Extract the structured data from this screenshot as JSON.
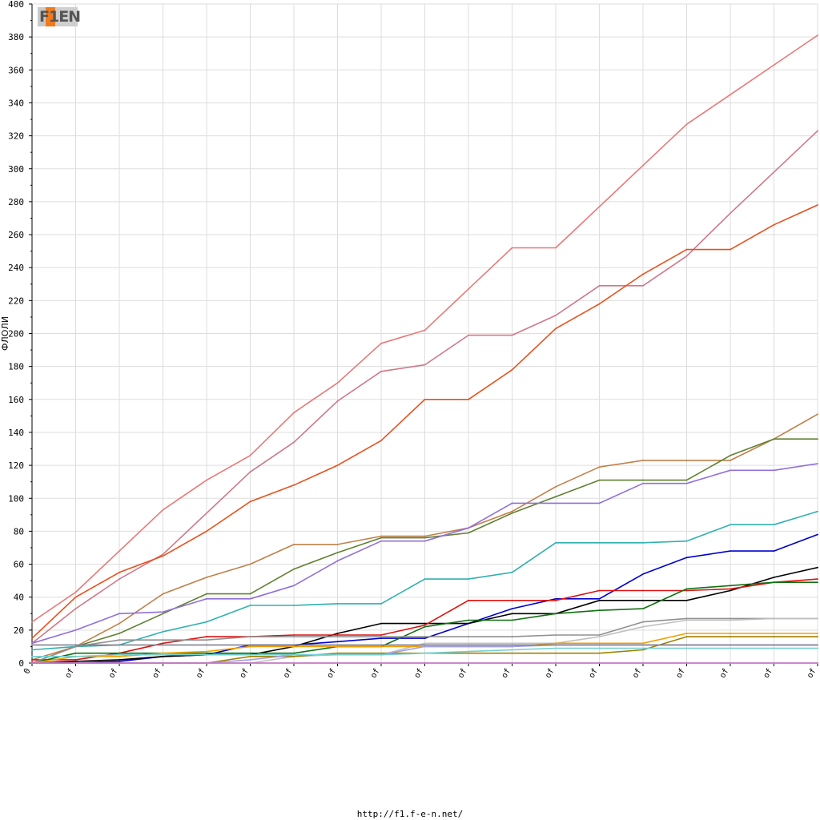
{
  "logo_text": "F1EN",
  "footer_url": "http://f1.f-e-n.net/",
  "chart_data": {
    "type": "line",
    "title": "",
    "xlabel": "",
    "ylabel": "ФЛОЛИ",
    "ylim": [
      0,
      400
    ],
    "yticks": [
      0,
      20,
      40,
      60,
      80,
      100,
      120,
      140,
      160,
      180,
      200,
      220,
      240,
      260,
      280,
      300,
      320,
      340,
      360,
      380,
      400
    ],
    "categories": [
      "0",
      "of",
      "of",
      "of",
      "of",
      "of",
      "of",
      "of",
      "of",
      "of",
      "of",
      "of",
      "of",
      "of",
      "of",
      "of",
      "of",
      "of",
      "of"
    ],
    "grid": true,
    "legend": "none",
    "series": [
      {
        "color": "#e87878",
        "values": [
          25,
          43,
          68,
          93,
          111,
          126,
          152,
          170,
          194,
          202,
          227,
          252,
          252,
          277,
          302,
          327,
          345,
          363,
          381
        ]
      },
      {
        "color": "#d07888",
        "values": [
          12,
          33,
          51,
          66,
          91,
          116,
          134,
          159,
          177,
          181,
          199,
          199,
          211,
          229,
          229,
          247,
          273,
          298,
          323
        ]
      },
      {
        "color": "#e8501c",
        "values": [
          15,
          40,
          55,
          65,
          80,
          98,
          108,
          120,
          135,
          160,
          160,
          178,
          203,
          218,
          236,
          251,
          251,
          266,
          278
        ]
      },
      {
        "color": "#c08048",
        "values": [
          2,
          10,
          24,
          42,
          52,
          60,
          72,
          72,
          77,
          77,
          82,
          92,
          107,
          119,
          123,
          123,
          123,
          136,
          151
        ]
      },
      {
        "color": "#608030",
        "values": [
          0,
          10,
          18,
          30,
          42,
          42,
          57,
          67,
          76,
          76,
          79,
          91,
          101,
          111,
          111,
          111,
          126,
          136,
          136
        ]
      },
      {
        "color": "#9070d8",
        "values": [
          12,
          20,
          30,
          31,
          39,
          39,
          47,
          62,
          74,
          74,
          82,
          97,
          97,
          97,
          109,
          109,
          117,
          117,
          121
        ]
      },
      {
        "color": "#30b0b0",
        "values": [
          8,
          10,
          11,
          19,
          25,
          35,
          35,
          36,
          36,
          51,
          51,
          55,
          73,
          73,
          73,
          74,
          84,
          84,
          92
        ]
      },
      {
        "color": "#0000d0",
        "values": [
          0,
          0,
          1,
          4,
          5,
          11,
          11,
          13,
          15,
          15,
          24,
          33,
          39,
          39,
          54,
          64,
          68,
          68,
          78
        ]
      },
      {
        "color": "#000000",
        "values": [
          0,
          1,
          2,
          4,
          5,
          5,
          10,
          18,
          24,
          24,
          24,
          30,
          30,
          38,
          38,
          38,
          44,
          52,
          58
        ]
      },
      {
        "color": "#e01010",
        "values": [
          2,
          2,
          6,
          12,
          16,
          16,
          17,
          17,
          17,
          23,
          38,
          38,
          38,
          44,
          44,
          44,
          45,
          49,
          51
        ]
      },
      {
        "color": "#107010",
        "values": [
          0,
          6,
          6,
          6,
          6,
          6,
          6,
          10,
          10,
          22,
          26,
          26,
          30,
          32,
          33,
          45,
          47,
          49,
          49
        ]
      },
      {
        "color": "#909090",
        "values": [
          0,
          10,
          14,
          14,
          14,
          16,
          16,
          16,
          16,
          16,
          16,
          16,
          17,
          17,
          25,
          27,
          27,
          27,
          27
        ]
      },
      {
        "color": "#c0c0c0",
        "values": [
          0,
          0,
          0,
          0,
          0,
          0,
          4,
          5,
          5,
          12,
          12,
          12,
          12,
          16,
          22,
          26,
          26,
          27,
          27
        ]
      },
      {
        "color": "#f0a000",
        "values": [
          0,
          4,
          4,
          6,
          7,
          10,
          10,
          10,
          10,
          10,
          10,
          10,
          12,
          12,
          12,
          18,
          18,
          18,
          18
        ]
      },
      {
        "color": "#a08000",
        "values": [
          0,
          0,
          0,
          0,
          0,
          4,
          4,
          6,
          6,
          6,
          6,
          6,
          6,
          6,
          8,
          16,
          16,
          16,
          16
        ]
      },
      {
        "color": "#a0a0e8",
        "values": [
          0,
          0,
          0,
          0,
          0,
          2,
          5,
          5,
          5,
          10,
          10,
          10,
          11,
          11,
          11,
          11,
          11,
          11,
          11
        ]
      },
      {
        "color": "#808090",
        "values": [
          11,
          11,
          11,
          11,
          11,
          11,
          11,
          11,
          11,
          11,
          11,
          11,
          11,
          11,
          11,
          11,
          11,
          11,
          11
        ]
      },
      {
        "color": "#70d0d0",
        "values": [
          4,
          4,
          5,
          5,
          5,
          5,
          5,
          5,
          5,
          6,
          7,
          8,
          9,
          9,
          9,
          9,
          9,
          9,
          9
        ]
      },
      {
        "color": "#20a020",
        "values": [
          0,
          0,
          0,
          0,
          0,
          0,
          0,
          0,
          0,
          0,
          0,
          0,
          0,
          0,
          0,
          0,
          0,
          0,
          0
        ]
      },
      {
        "color": "#e070e0",
        "values": [
          0,
          0,
          0,
          0,
          0,
          0,
          0,
          0,
          0,
          0,
          0,
          0,
          0,
          0,
          0,
          0,
          0,
          0,
          0
        ]
      }
    ]
  }
}
